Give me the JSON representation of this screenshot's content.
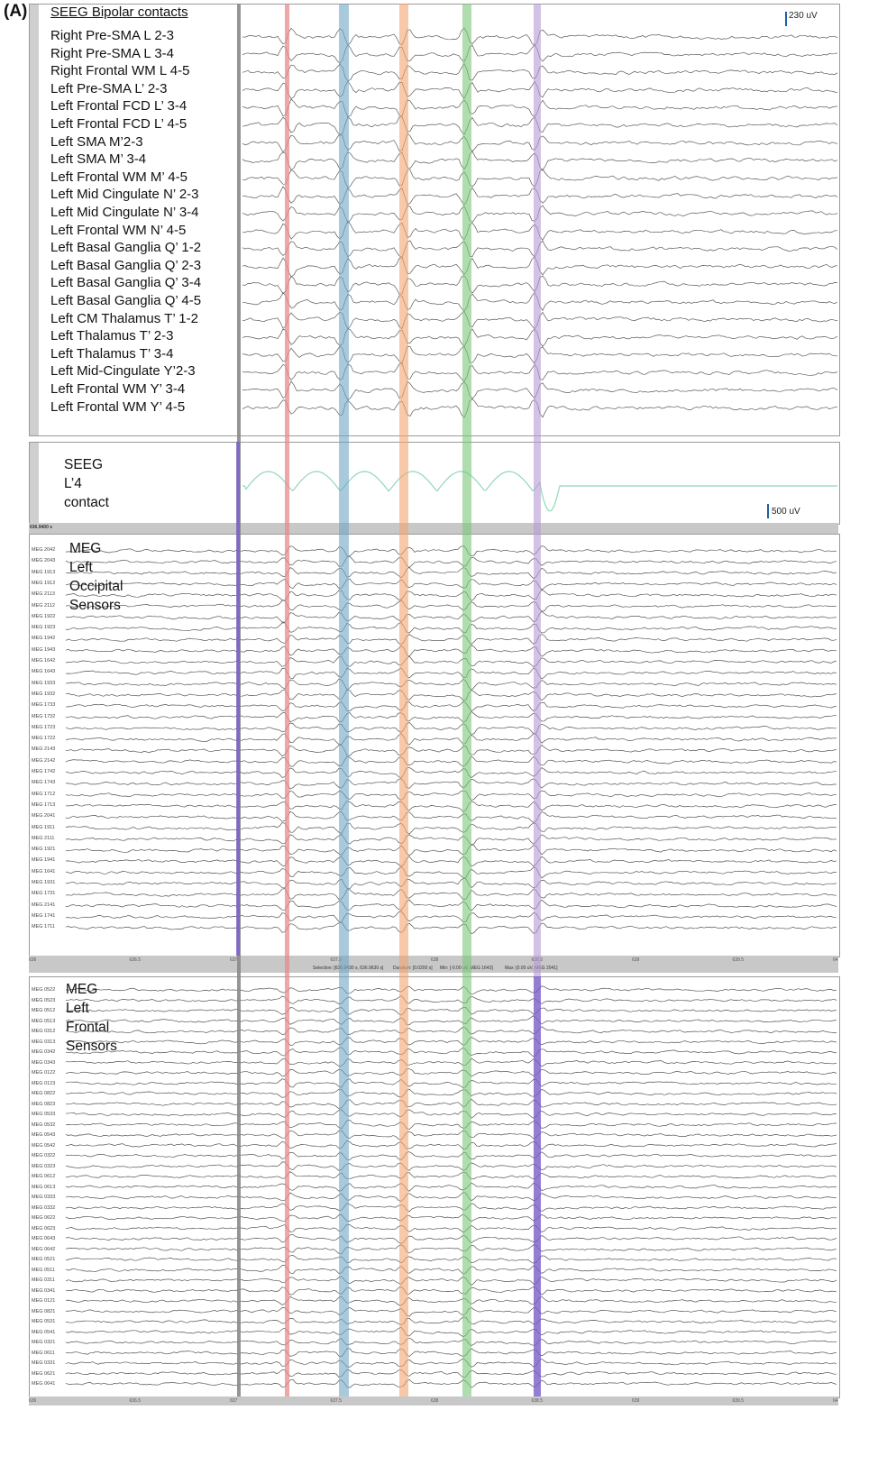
{
  "figure_label": "(A)",
  "panel1": {
    "title": "SEEG Bipolar contacts",
    "scale": "230 uV",
    "channels": [
      "Right Pre-SMA L 2-3",
      "Right Pre-SMA L 3-4",
      "Right Frontal WM L 4-5",
      "Left Pre-SMA L’ 2-3",
      "Left Frontal FCD L’ 3-4",
      "Left Frontal FCD L’ 4-5",
      "Left SMA M’2-3",
      "Left SMA M’ 3-4",
      "Left Frontal WM M’ 4-5",
      "Left Mid Cingulate N’ 2-3",
      "Left Mid Cingulate N’ 3-4",
      "Left Frontal WM N’ 4-5",
      "Left Basal Ganglia Q’ 1-2",
      "Left Basal Ganglia Q’ 2-3",
      "Left Basal Ganglia Q’ 3-4",
      "Left Basal Ganglia Q’ 4-5",
      "Left CM Thalamus T’ 1-2",
      "Left Thalamus T’ 2-3",
      "Left Thalamus T’ 3-4",
      "Left Mid-Cingulate Y’2-3",
      "Left Frontal WM Y’ 3-4",
      "Left Frontal WM Y’ 4-5"
    ]
  },
  "panel2": {
    "title_lines": [
      "SEEG",
      "L’4",
      "contact"
    ],
    "scale": "500 uV"
  },
  "panel3": {
    "title_lines": [
      "MEG",
      "Left",
      "Occipital",
      "Sensors"
    ],
    "time_label": "636.9400 s",
    "channels": [
      "MEG 2042",
      "MEG 2043",
      "MEG 1913",
      "MEG 1912",
      "MEG 2113",
      "MEG 2112",
      "MEG 1922",
      "MEG 1923",
      "MEG 1942",
      "MEG 1943",
      "MEG 1642",
      "MEG 1643",
      "MEG 1933",
      "MEG 1932",
      "MEG 1733",
      "MEG 1732",
      "MEG 1723",
      "MEG 1722",
      "MEG 2143",
      "MEG 2142",
      "MEG 1742",
      "MEG 1743",
      "MEG 1712",
      "MEG 1713",
      "MEG 2041",
      "MEG 1911",
      "MEG 2111",
      "MEG 1921",
      "MEG 1941",
      "MEG 1641",
      "MEG 1931",
      "MEG 1731",
      "MEG 2141",
      "MEG 1741",
      "MEG 1711"
    ],
    "ticks": [
      "636",
      "636.5",
      "637",
      "637.5",
      "638",
      "638.5",
      "639",
      "639.5",
      "64"
    ],
    "status": {
      "selection": "Selection: [636.9430 s, 636.9630 s]",
      "duration": "Duration: [0.0200 s]",
      "min": "Min: [-0.00 uV, MEG 1643]",
      "max": "Max: [0.00 uV, MEG 2041]"
    }
  },
  "panel4": {
    "title_lines": [
      "MEG",
      "Left",
      "Frontal",
      "Sensors"
    ],
    "channels": [
      "MEG 0522",
      "MEG 0523",
      "MEG 0512",
      "MEG 0513",
      "MEG 0312",
      "MEG 0313",
      "MEG 0342",
      "MEG 0343",
      "MEG 0122",
      "MEG 0123",
      "MEG 0822",
      "MEG 0823",
      "MEG 0533",
      "MEG 0532",
      "MEG 0543",
      "MEG 0542",
      "MEG 0322",
      "MEG 0323",
      "MEG 0612",
      "MEG 0613",
      "MEG 0333",
      "MEG 0332",
      "MEG 0622",
      "MEG 0623",
      "MEG 0643",
      "MEG 0642",
      "MEG 0521",
      "MEG 0511",
      "MEG 0311",
      "MEG 0341",
      "MEG 0121",
      "MEG 0821",
      "MEG 0531",
      "MEG 0541",
      "MEG 0321",
      "MEG 0611",
      "MEG 0331",
      "MEG 0621",
      "MEG 0641"
    ],
    "ticks": [
      "636",
      "636.5",
      "637",
      "637.5",
      "638",
      "638.5",
      "639",
      "639.5",
      "64"
    ]
  },
  "colors": {
    "marker_gray": "#8a8a8a",
    "marker_red": "#e98b8b",
    "marker_blue": "#6fa6c6",
    "marker_orange": "#f2a572",
    "marker_green": "#7cc77c",
    "marker_purple": "#b89ad6",
    "marker_violet": "#7a5cc8",
    "seeg_l4_trace": "#8fd8b8"
  }
}
